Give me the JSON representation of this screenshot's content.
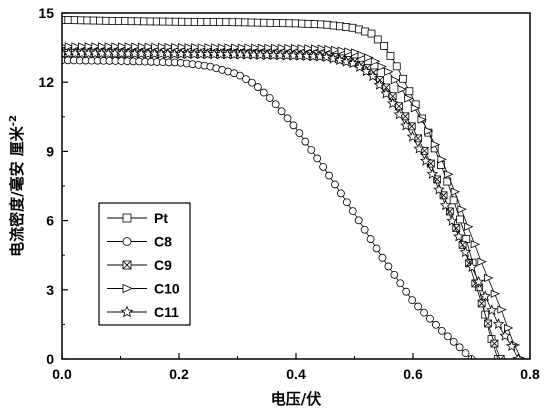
{
  "chart_data": {
    "type": "line",
    "xlabel": "电压/伏",
    "ylabel": "电流密度/毫安 厘米",
    "ylabel_sup": "-2",
    "xlim": [
      0.0,
      0.8
    ],
    "ylim": [
      0,
      15
    ],
    "x_ticks": [
      "0.0",
      "0.2",
      "0.4",
      "0.6",
      "0.8"
    ],
    "y_ticks": [
      "0",
      "3",
      "6",
      "9",
      "12",
      "15"
    ],
    "legend_position": "lower-left",
    "series": [
      {
        "name": "Pt",
        "marker": "square",
        "points": [
          [
            0.0,
            14.7
          ],
          [
            0.1,
            14.65
          ],
          [
            0.2,
            14.62
          ],
          [
            0.3,
            14.6
          ],
          [
            0.4,
            14.55
          ],
          [
            0.45,
            14.5
          ],
          [
            0.5,
            14.35
          ],
          [
            0.53,
            14.1
          ],
          [
            0.55,
            13.6
          ],
          [
            0.57,
            12.8
          ],
          [
            0.6,
            11.3
          ],
          [
            0.63,
            9.6
          ],
          [
            0.66,
            7.6
          ],
          [
            0.69,
            5.3
          ],
          [
            0.71,
            3.4
          ],
          [
            0.73,
            1.2
          ],
          [
            0.745,
            0.0
          ]
        ]
      },
      {
        "name": "C8",
        "marker": "circle",
        "points": [
          [
            0.0,
            12.95
          ],
          [
            0.1,
            12.92
          ],
          [
            0.2,
            12.85
          ],
          [
            0.25,
            12.7
          ],
          [
            0.3,
            12.35
          ],
          [
            0.33,
            11.9
          ],
          [
            0.36,
            11.2
          ],
          [
            0.4,
            10.0
          ],
          [
            0.45,
            8.2
          ],
          [
            0.5,
            6.3
          ],
          [
            0.55,
            4.3
          ],
          [
            0.6,
            2.5
          ],
          [
            0.65,
            1.2
          ],
          [
            0.68,
            0.5
          ],
          [
            0.7,
            0.0
          ]
        ]
      },
      {
        "name": "C9",
        "marker": "x-box",
        "points": [
          [
            0.0,
            13.35
          ],
          [
            0.1,
            13.33
          ],
          [
            0.2,
            13.3
          ],
          [
            0.3,
            13.3
          ],
          [
            0.4,
            13.25
          ],
          [
            0.45,
            13.2
          ],
          [
            0.5,
            12.9
          ],
          [
            0.53,
            12.5
          ],
          [
            0.56,
            11.6
          ],
          [
            0.6,
            10.0
          ],
          [
            0.63,
            8.5
          ],
          [
            0.66,
            6.6
          ],
          [
            0.69,
            4.6
          ],
          [
            0.72,
            2.2
          ],
          [
            0.74,
            0.6
          ],
          [
            0.75,
            0.0
          ]
        ]
      },
      {
        "name": "C10",
        "marker": "triangle-right",
        "points": [
          [
            0.0,
            13.55
          ],
          [
            0.1,
            13.55
          ],
          [
            0.2,
            13.52
          ],
          [
            0.3,
            13.5
          ],
          [
            0.4,
            13.48
          ],
          [
            0.45,
            13.45
          ],
          [
            0.5,
            13.3
          ],
          [
            0.53,
            13.0
          ],
          [
            0.56,
            12.4
          ],
          [
            0.6,
            11.0
          ],
          [
            0.63,
            9.7
          ],
          [
            0.66,
            8.0
          ],
          [
            0.69,
            6.0
          ],
          [
            0.72,
            4.0
          ],
          [
            0.75,
            2.2
          ],
          [
            0.77,
            0.8
          ],
          [
            0.785,
            0.0
          ]
        ]
      },
      {
        "name": "C11",
        "marker": "star",
        "points": [
          [
            0.0,
            13.25
          ],
          [
            0.1,
            13.24
          ],
          [
            0.2,
            13.22
          ],
          [
            0.3,
            13.2
          ],
          [
            0.4,
            13.15
          ],
          [
            0.45,
            13.1
          ],
          [
            0.5,
            12.8
          ],
          [
            0.53,
            12.3
          ],
          [
            0.56,
            11.3
          ],
          [
            0.6,
            9.6
          ],
          [
            0.63,
            8.2
          ],
          [
            0.66,
            6.4
          ],
          [
            0.69,
            4.6
          ],
          [
            0.72,
            2.9
          ],
          [
            0.75,
            1.3
          ],
          [
            0.77,
            0.5
          ],
          [
            0.78,
            0.0
          ]
        ]
      }
    ]
  }
}
